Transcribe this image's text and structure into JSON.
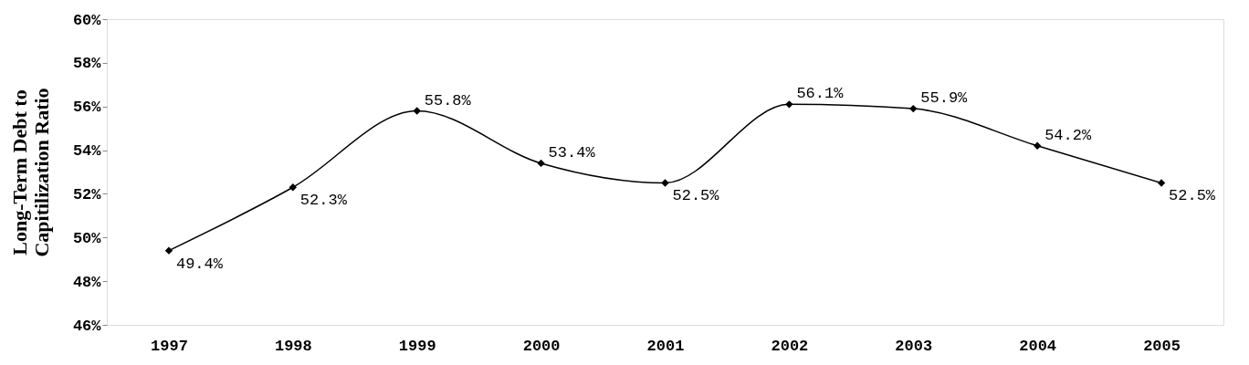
{
  "chart_data": {
    "type": "line",
    "ylabel": "Long-Term Debt to\nCapitilization Ratio",
    "categories": [
      "1997",
      "1998",
      "1999",
      "2000",
      "2001",
      "2002",
      "2003",
      "2004",
      "2005"
    ],
    "series": [
      {
        "color": "#000000",
        "values": [
          49.4,
          52.3,
          55.8,
          53.4,
          52.5,
          56.1,
          55.9,
          54.2,
          52.5
        ],
        "value_labels": [
          "49.4%",
          "52.3%",
          "55.8%",
          "53.4%",
          "52.5%",
          "56.1%",
          "55.9%",
          "54.2%",
          "52.5%"
        ]
      }
    ],
    "ylim": [
      46,
      60
    ],
    "yticks": [
      {
        "value": 46,
        "label": "46%"
      },
      {
        "value": 48,
        "label": "48%"
      },
      {
        "value": 50,
        "label": "50%"
      },
      {
        "value": 52,
        "label": "52%"
      },
      {
        "value": 54,
        "label": "54%"
      },
      {
        "value": 56,
        "label": "56%"
      },
      {
        "value": 58,
        "label": "58%"
      },
      {
        "value": 60,
        "label": "60%"
      }
    ],
    "grid": false,
    "marker": "diamond",
    "line_style": "solid"
  }
}
